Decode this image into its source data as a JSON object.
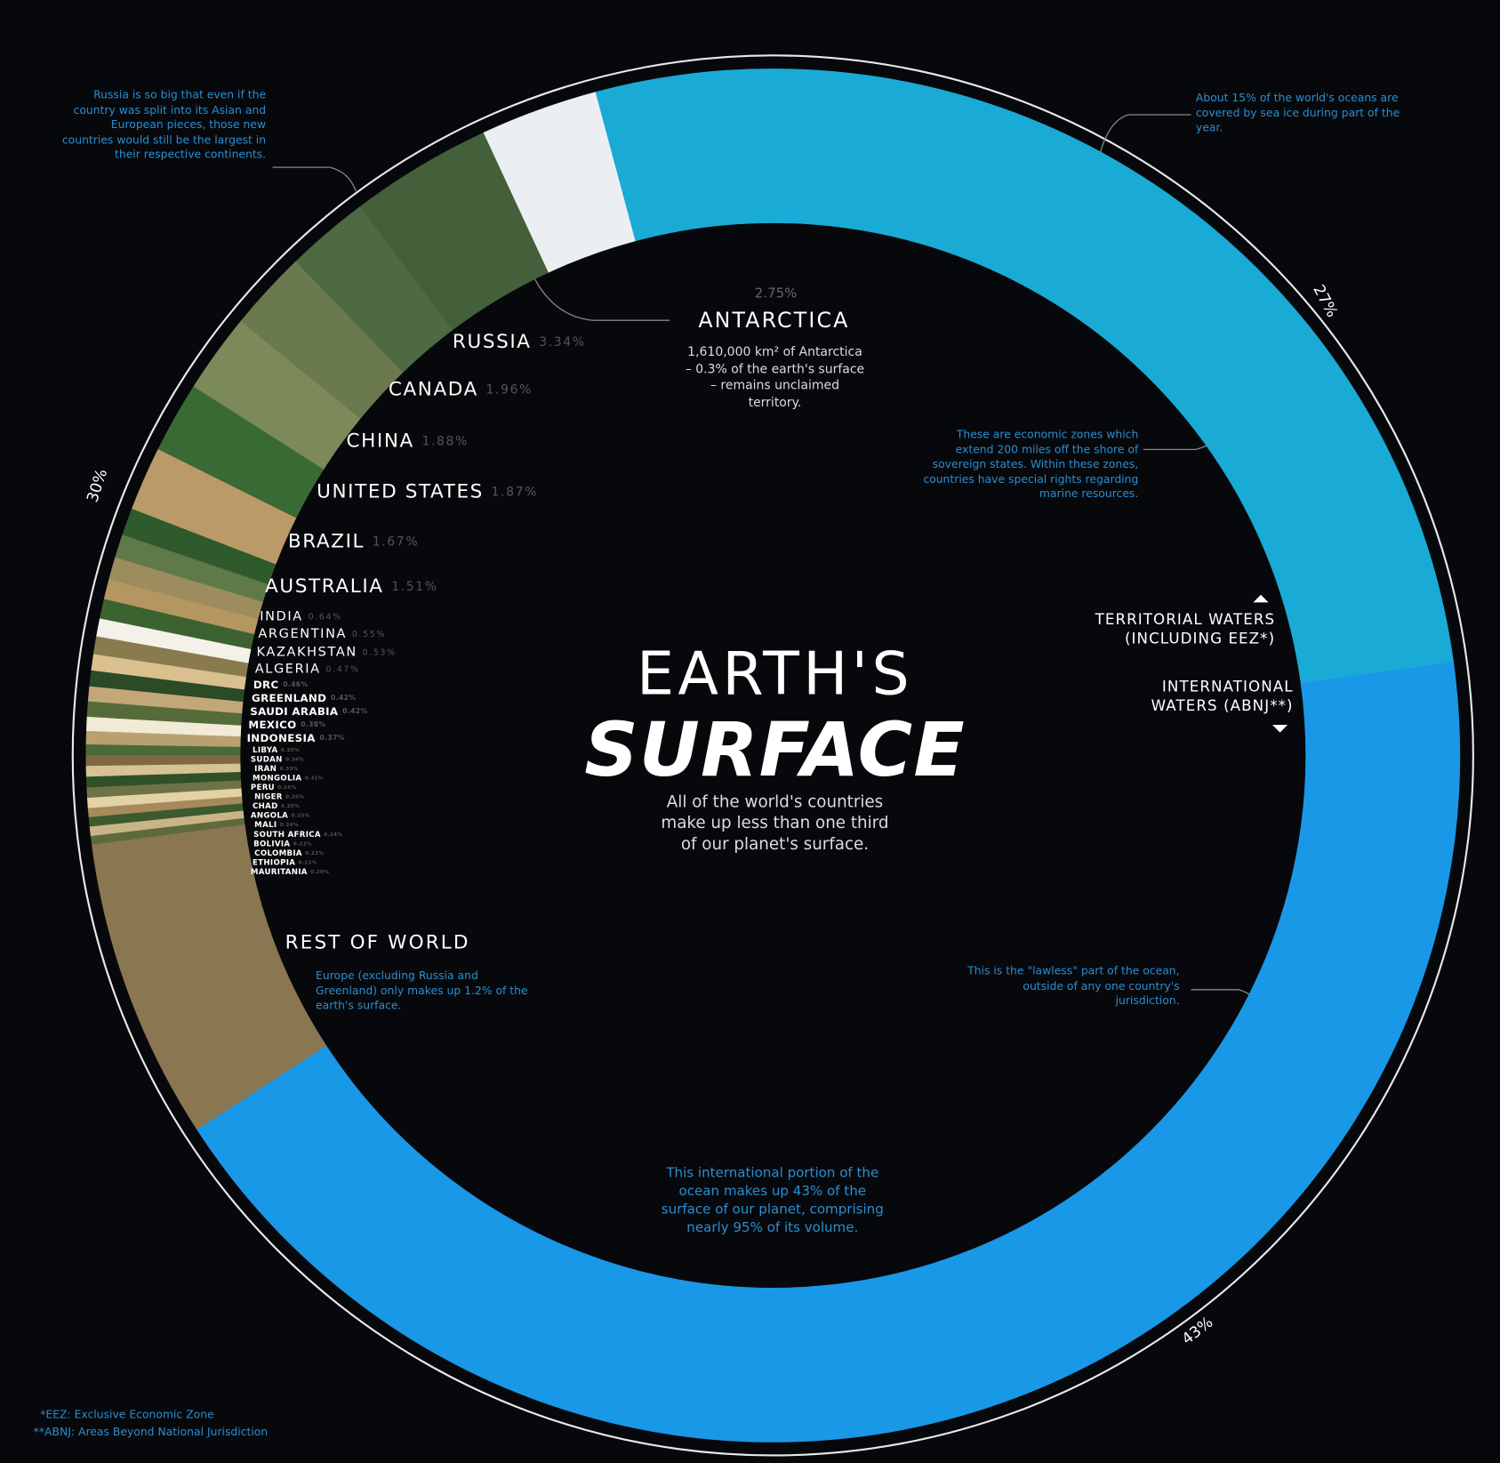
{
  "chart_data": {
    "type": "donut",
    "title": "EARTH'S",
    "title_emphasis": "SURFACE",
    "subtitle": "All of the world's countries\nmake up less than one third\nof our planet's surface.",
    "categories": [
      "TERRITORIAL WATERS\n(INCLUDING EEZ*)",
      "INTERNATIONAL\nWATERS (ABNJ**)",
      "REST OF WORLD",
      "MAURITANIA",
      "ETHIOPIA",
      "COLOMBIA",
      "BOLIVIA",
      "SOUTH AFRICA",
      "MALI",
      "ANGOLA",
      "CHAD",
      "NIGER",
      "PERU",
      "MONGOLIA",
      "IRAN",
      "SUDAN",
      "LIBYA",
      "INDONESIA",
      "MEXICO",
      "SAUDI ARABIA",
      "GREENLAND",
      "DRC",
      "ALGERIA",
      "KAZAKHSTAN",
      "ARGENTINA",
      "INDIA",
      "AUSTRALIA",
      "BRAZIL",
      "UNITED STATES",
      "CHINA",
      "CANADA",
      "RUSSIA",
      "ANTARCTICA"
    ],
    "values": [
      27,
      43,
      7.1,
      0.2,
      0.22,
      0.22,
      0.21,
      0.24,
      0.24,
      0.25,
      0.25,
      0.25,
      0.25,
      0.31,
      0.33,
      0.36,
      0.35,
      0.37,
      0.38,
      0.42,
      0.42,
      0.46,
      0.47,
      0.53,
      0.55,
      0.64,
      1.51,
      1.67,
      1.87,
      1.88,
      1.96,
      3.34,
      2.75
    ],
    "value_labels": [
      "27%",
      "43%",
      null,
      "0.20%",
      "0.22%",
      "0.22%",
      "0.21%",
      "0.24%",
      "0.24%",
      "0.25%",
      "0.25%",
      "0.25%",
      "0.25%",
      "0.31%",
      "0.33%",
      "0.36%",
      "0.35%",
      "0.37%",
      "0.38%",
      "0.42%",
      "0.42%",
      "0.46%",
      "0.47%",
      "0.53%",
      "0.55%",
      "0.64%",
      "1.51%",
      "1.67%",
      "1.87%",
      "1.88%",
      "1.96%",
      "3.34%",
      "2.75%"
    ],
    "colors": [
      "#19abd6",
      "#1a98e8",
      "#8b7652",
      "#5d6a3c",
      "#c9b486",
      "#3b5a2e",
      "#a68a5c",
      "#e3d2a6",
      "#6e7346",
      "#2f5028",
      "#d7c294",
      "#7d6a45",
      "#4a6a3a",
      "#b8a070",
      "#f1ead6",
      "#556b3a",
      "#c4a778",
      "#2b4a26",
      "#d9c08e",
      "#8a7b4e",
      "#f4f1ea",
      "#3c6230",
      "#b49660",
      "#9c8c5e",
      "#5f7a48",
      "#2e5a2c",
      "#b99a68",
      "#3a6a34",
      "#7b8a58",
      "#6b7a4e",
      "#4d6a42",
      "#44603a",
      "#eceff2"
    ],
    "land_total": {
      "value": 30,
      "label": "30%"
    },
    "annotations": {
      "russia": "Russia is so big that even if the country was split into its Asian and European pieces, those new countries would still be the largest in their respective continents.",
      "sea_ice": "About 15% of the world's oceans are covered by sea ice during part of the year.",
      "antarctica": "1,610,000 km² of Antarctica – 0.3% of the earth's surface – remains unclaimed territory.",
      "eez": "These are economic zones which extend 200 miles off the shore of sovereign states. Within these zones, countries have special rights regarding marine resources.",
      "europe": "Europe (excluding Russia and Greenland) only makes up 1.2% of the earth's surface.",
      "lawless": "This is the \"lawless\" part of the ocean, outside of any one country's jurisdiction.",
      "international": "This international portion of the ocean makes up 43% of the surface of our planet, comprising nearly 95% of its volume."
    },
    "footnotes": [
      "*EEZ: Exclusive Economic Zone",
      "**ABNJ: Areas Beyond National Jurisdiction"
    ]
  }
}
